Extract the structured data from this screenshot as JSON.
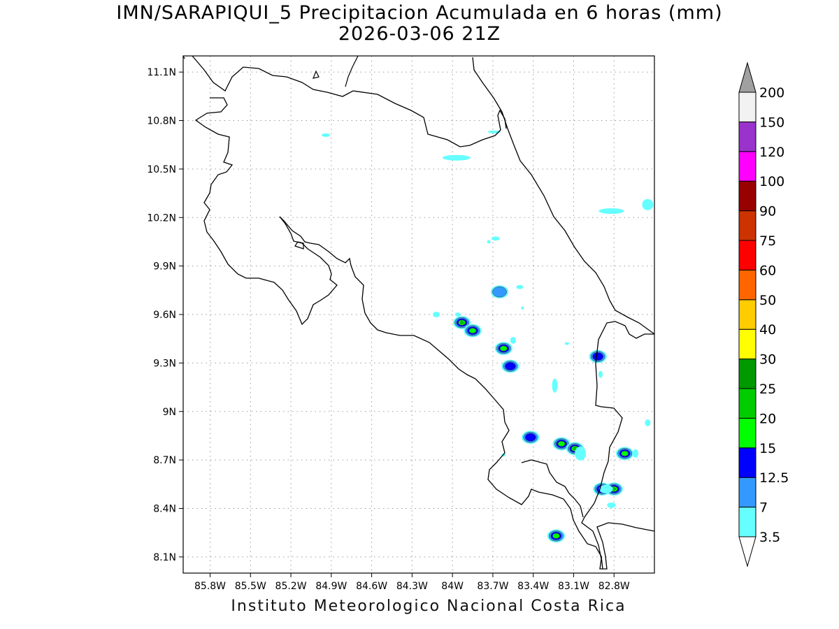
{
  "title": "IMN/SARAPIQUI_5 Precipitacion Acumulada en 6 horas (mm)",
  "subtitle": "2026-03-06 21Z",
  "footer": "Instituto Meteorologico Nacional Costa Rica",
  "axes": {
    "lon_labels": [
      "85.8W",
      "85.5W",
      "85.2W",
      "84.9W",
      "84.6W",
      "84.3W",
      "84W",
      "83.7W",
      "83.4W",
      "83.1W",
      "82.8W"
    ],
    "lon_values": [
      -85.8,
      -85.5,
      -85.2,
      -84.9,
      -84.6,
      -84.3,
      -84.0,
      -83.7,
      -83.4,
      -83.1,
      -82.8
    ],
    "lat_labels": [
      "11.1N",
      "10.8N",
      "10.5N",
      "10.2N",
      "9.9N",
      "9.6N",
      "9.3N",
      "9N",
      "8.7N",
      "8.4N",
      "8.1N"
    ],
    "lat_values": [
      11.1,
      10.8,
      10.5,
      10.2,
      9.9,
      9.6,
      9.3,
      9.0,
      8.7,
      8.4,
      8.1
    ],
    "lon_range": [
      -86.0,
      -82.5
    ],
    "lat_range": [
      8.0,
      11.2
    ],
    "grid": "dotted"
  },
  "colorbar": {
    "labels": [
      "3.5",
      "7",
      "12.5",
      "15",
      "20",
      "25",
      "30",
      "40",
      "50",
      "60",
      "75",
      "90",
      "100",
      "120",
      "150",
      "200"
    ],
    "colors": [
      "#66ffff",
      "#3399ff",
      "#0000ff",
      "#00ff00",
      "#00cc00",
      "#009900",
      "#ffff00",
      "#ffcc00",
      "#ff6600",
      "#ff0000",
      "#cc3300",
      "#990000",
      "#ff00ff",
      "#9933cc",
      "#f2f2f2"
    ],
    "over_color": "#a0a0a0",
    "under_color": "#ffffff"
  },
  "precip_cells": [
    {
      "lon": -83.93,
      "lat": 9.55,
      "peak": "20"
    },
    {
      "lon": -83.85,
      "lat": 9.5,
      "peak": "15"
    },
    {
      "lon": -83.62,
      "lat": 9.39,
      "peak": "15"
    },
    {
      "lon": -83.57,
      "lat": 9.28,
      "peak": "12.5"
    },
    {
      "lon": -83.65,
      "lat": 9.74,
      "peak": "7"
    },
    {
      "lon": -83.42,
      "lat": 8.84,
      "peak": "12.5"
    },
    {
      "lon": -83.19,
      "lat": 8.8,
      "peak": "15"
    },
    {
      "lon": -83.09,
      "lat": 8.77,
      "peak": "20"
    },
    {
      "lon": -82.8,
      "lat": 8.52,
      "peak": "20"
    },
    {
      "lon": -82.89,
      "lat": 8.52,
      "peak": "12.5"
    },
    {
      "lon": -82.72,
      "lat": 8.74,
      "peak": "15"
    },
    {
      "lon": -82.92,
      "lat": 9.34,
      "peak": "12.5"
    },
    {
      "lon": -83.23,
      "lat": 8.23,
      "peak": "15"
    }
  ]
}
